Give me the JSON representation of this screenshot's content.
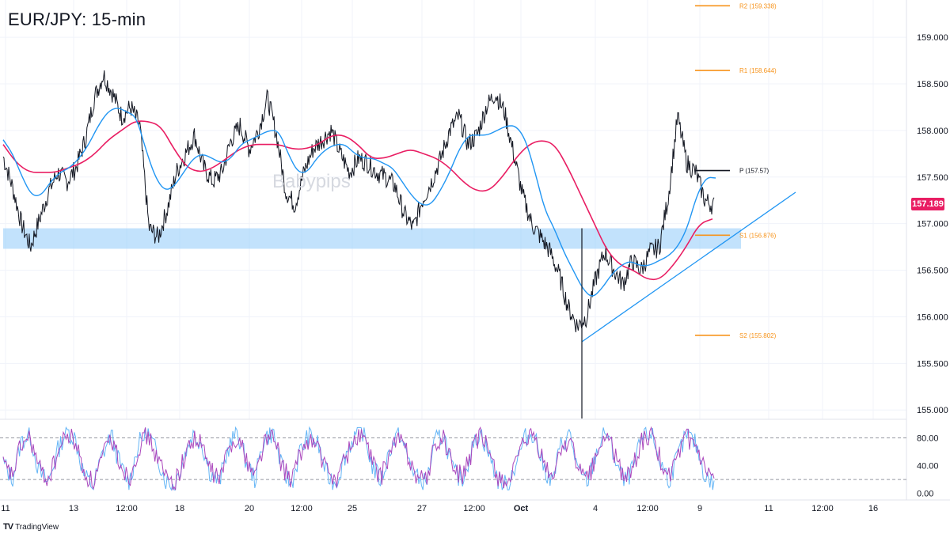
{
  "header": {
    "title": "EUR/JPY: 15-min"
  },
  "watermark": "Babypips",
  "brand": {
    "logo": "TV",
    "name": "TradingView"
  },
  "colors": {
    "price": "#131722",
    "ema_fast": "#2196f3",
    "ema_slow": "#e91e63",
    "pivot_support_resistance": "#f7931a",
    "pivot_line": "#131722",
    "zone": "#90caf9",
    "trendline": "#2196f3",
    "rsi_blue": "#64b5f6",
    "rsi_purple": "#ab47bc"
  },
  "chart_data": [
    {
      "type": "line",
      "title": "EUR/JPY: 15-min",
      "y_axis": {
        "ticks": [
          "159.000",
          "158.500",
          "158.000",
          "157.500",
          "157.000",
          "156.500",
          "156.000",
          "155.500",
          "155.000"
        ],
        "tick_values": [
          159.0,
          158.5,
          158.0,
          157.5,
          157.0,
          156.5,
          156.0,
          155.5,
          155.0
        ],
        "range": [
          154.9,
          159.4
        ]
      },
      "x_axis": {
        "ticks": [
          "11",
          "13",
          "12:00",
          "18",
          "20",
          "12:00",
          "25",
          "27",
          "12:00",
          "Oct",
          "4",
          "12:00",
          "9",
          "11",
          "12:00",
          "16"
        ]
      },
      "current_price": {
        "value": 157.189,
        "label": "157.189"
      },
      "pivot_levels": [
        {
          "name": "R2",
          "value": 159.338,
          "label": "R2 (159.338)"
        },
        {
          "name": "R1",
          "value": 158.644,
          "label": "R1 (158.644)"
        },
        {
          "name": "P",
          "value": 157.57,
          "label": "P (157.57)"
        },
        {
          "name": "S1",
          "value": 156.876,
          "label": "S1 (156.876)"
        },
        {
          "name": "S2",
          "value": 155.802,
          "label": "S2 (155.802)"
        }
      ],
      "support_zone": [
        156.73,
        156.95
      ],
      "series": [
        {
          "values": [
            157.72,
            157.4,
            157.0,
            156.75,
            157.05,
            157.35,
            157.55,
            157.45,
            157.6,
            157.9,
            158.35,
            158.6,
            158.4,
            158.15,
            158.25,
            158.05,
            156.95,
            156.85,
            157.15,
            157.55,
            157.75,
            157.95,
            157.6,
            157.45,
            157.55,
            157.9,
            158.05,
            157.8,
            158.0,
            158.35,
            157.95,
            157.35,
            157.2,
            157.55,
            157.8,
            157.9,
            158.0,
            157.75,
            157.55,
            157.7,
            157.65,
            157.55,
            157.5,
            157.4,
            157.1,
            156.95,
            157.25,
            157.45,
            157.7,
            158.0,
            158.15,
            157.85,
            157.95,
            158.25,
            158.4,
            158.2,
            157.75,
            157.3,
            157.0,
            156.85,
            156.7,
            156.45,
            156.1,
            155.9,
            156.0,
            156.4,
            156.7,
            156.5,
            156.35,
            156.6,
            156.5,
            156.7,
            156.75,
            157.3,
            158.15,
            157.65,
            157.55,
            157.25,
            157.19
          ]
        },
        {
          "values": [
            157.9,
            157.75,
            157.5,
            157.3,
            157.3,
            157.45,
            157.55,
            157.6,
            157.7,
            157.85,
            158.05,
            158.2,
            158.25,
            158.2,
            158.15,
            157.8,
            157.5,
            157.35,
            157.4,
            157.55,
            157.7,
            157.75,
            157.7,
            157.65,
            157.7,
            157.85,
            157.9,
            157.95,
            158.0,
            158.0,
            157.75,
            157.55,
            157.55,
            157.7,
            157.8,
            157.85,
            157.85,
            157.75,
            157.7,
            157.7,
            157.65,
            157.6,
            157.45,
            157.3,
            157.2,
            157.2,
            157.35,
            157.55,
            157.8,
            157.95,
            157.95,
            157.95,
            158.0,
            158.05,
            158.05,
            157.9,
            157.55,
            157.15,
            156.95,
            156.7,
            156.5,
            156.3,
            156.2,
            156.3,
            156.45,
            156.55,
            156.6,
            156.55,
            156.55,
            156.6,
            156.65,
            156.75,
            156.95,
            157.3,
            157.5,
            157.49
          ]
        },
        {
          "values": [
            157.85,
            157.65,
            157.55,
            157.55,
            157.55,
            157.6,
            157.65,
            157.75,
            157.9,
            158.0,
            158.1,
            158.1,
            158.05,
            157.8,
            157.6,
            157.55,
            157.6,
            157.7,
            157.8,
            157.85,
            157.85,
            157.85,
            157.8,
            157.8,
            157.85,
            157.95,
            157.95,
            157.85,
            157.7,
            157.7,
            157.75,
            157.8,
            157.75,
            157.7,
            157.6,
            157.45,
            157.35,
            157.35,
            157.5,
            157.7,
            157.85,
            157.9,
            157.85,
            157.6,
            157.3,
            157.0,
            156.7,
            156.55,
            156.5,
            156.4,
            156.4,
            156.55,
            156.75,
            157.0,
            157.05
          ]
        }
      ]
    },
    {
      "type": "line",
      "y_axis": {
        "ticks": [
          "80.00",
          "40.00",
          "0.00"
        ],
        "tick_values": [
          80,
          40,
          0
        ],
        "range": [
          -5,
          100
        ]
      },
      "levels": [
        80,
        20
      ],
      "series": [
        {
          "values": [
            45,
            20,
            75,
            85,
            30,
            15,
            60,
            90,
            80,
            25,
            10,
            55,
            85,
            40,
            15,
            70,
            90,
            60,
            20,
            10,
            50,
            85,
            75,
            30,
            15,
            65,
            90,
            45,
            20,
            80,
            88,
            35,
            12,
            60,
            85,
            70,
            25,
            15,
            55,
            82,
            90,
            40,
            18,
            65,
            88,
            50,
            22,
            14,
            75,
            85,
            30,
            20,
            60,
            90,
            55,
            20,
            10,
            45,
            80,
            88,
            40,
            15,
            70,
            85,
            25,
            18,
            62,
            90,
            50,
            15,
            35,
            80,
            88,
            45,
            20,
            55,
            85,
            70,
            25,
            12
          ]
        },
        {
          "values": [
            40,
            25,
            70,
            80,
            35,
            20,
            55,
            85,
            75,
            30,
            15,
            50,
            80,
            45,
            20,
            65,
            85,
            55,
            25,
            15,
            45,
            80,
            70,
            35,
            20,
            60,
            85,
            50,
            25,
            75,
            82,
            40,
            18,
            55,
            80,
            65,
            30,
            20,
            50,
            78,
            85,
            45,
            22,
            60,
            82,
            55,
            25,
            18,
            70,
            80,
            35,
            25,
            55,
            85,
            60,
            25,
            15,
            40,
            75,
            82,
            45,
            20,
            65,
            80,
            30,
            22,
            58,
            85,
            55,
            20,
            40,
            75,
            82,
            50,
            25,
            50,
            80,
            65,
            30,
            18
          ]
        }
      ]
    }
  ]
}
